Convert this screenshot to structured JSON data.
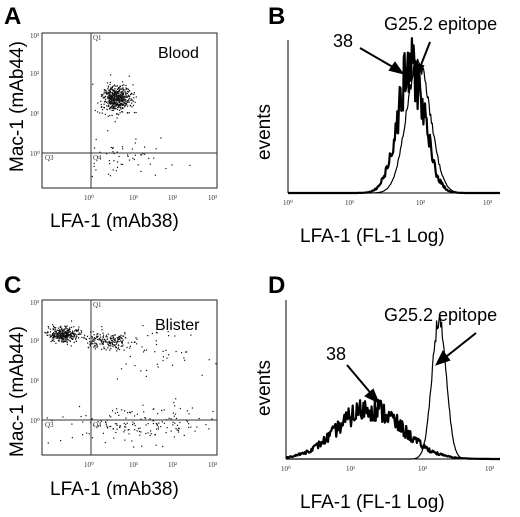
{
  "figure": {
    "panels": [
      {
        "letter": "A",
        "inset_label": "Blood",
        "xlabel": "LFA-1 (mAb38)",
        "ylabel": "Mac-1 (mAb44)",
        "xticks": [
          "10⁰",
          "10¹",
          "10²",
          "10³"
        ],
        "yticks": [
          "10⁰",
          "10¹",
          "10²",
          "10³"
        ],
        "quadrants": [
          "Q1",
          "Q2",
          "Q3",
          "Q4"
        ]
      },
      {
        "letter": "B",
        "xlabel": "LFA-1 (FL-1 Log)",
        "ylabel": "events",
        "xticks": [
          "10⁰",
          "10¹",
          "10²",
          "10³"
        ],
        "annotations": [
          "38",
          "G25.2 epitope"
        ]
      },
      {
        "letter": "C",
        "inset_label": "Blister",
        "xlabel": "LFA-1 (mAb38)",
        "ylabel": "Mac-1 (mAb44)",
        "xticks": [
          "10⁰",
          "10¹",
          "10²",
          "10³"
        ],
        "yticks": [
          "10⁰",
          "10¹",
          "10²",
          "10³"
        ],
        "quadrants": [
          "Q1",
          "Q2",
          "Q3",
          "Q4"
        ]
      },
      {
        "letter": "D",
        "xlabel": "LFA-1 (FL-1 Log)",
        "ylabel": "events",
        "xticks": [
          "10⁰",
          "10¹",
          "10²",
          "10³"
        ],
        "annotations": [
          "38",
          "G25.2 epitope"
        ]
      }
    ]
  },
  "chart_data": [
    {
      "type": "scatter",
      "panel": "A",
      "xscale": "log",
      "yscale": "log",
      "xlim": [
        0.1,
        1000
      ],
      "ylim": [
        0.01,
        1000
      ],
      "gate": {
        "x": 1,
        "y": 1
      },
      "populations": [
        {
          "center": [
            5,
            8
          ],
          "spread_log": [
            0.17,
            0.22
          ],
          "count": 520
        },
        {
          "center": [
            8,
            0.1
          ],
          "spread_log": [
            0.6,
            0.3
          ],
          "count": 55
        }
      ]
    },
    {
      "type": "line",
      "panel": "B",
      "xscale": "log",
      "xlim": [
        1,
        1000
      ],
      "ylim": [
        0,
        1
      ],
      "series": [
        {
          "name": "38",
          "peak_x": 55,
          "peak_y": 0.85,
          "width_log": 0.19,
          "thick": true
        },
        {
          "name": "G25.2 epitope",
          "peak_x": 70,
          "peak_y": 0.88,
          "width_log": 0.17,
          "thick": false
        }
      ]
    },
    {
      "type": "scatter",
      "panel": "C",
      "xscale": "log",
      "yscale": "log",
      "xlim": [
        0.1,
        1000
      ],
      "ylim": [
        0.01,
        1000
      ],
      "gate": {
        "x": 1,
        "y": 1
      },
      "populations": [
        {
          "center": [
            0.3,
            80
          ],
          "spread_log": [
            0.18,
            0.12
          ],
          "count": 330
        },
        {
          "center": [
            3,
            50
          ],
          "spread_log": [
            0.3,
            0.14
          ],
          "count": 200
        },
        {
          "center": [
            40,
            20
          ],
          "spread_log": [
            0.6,
            0.35
          ],
          "count": 50
        },
        {
          "center": [
            20,
            0.1
          ],
          "spread_log": [
            0.9,
            0.3
          ],
          "count": 170
        }
      ]
    },
    {
      "type": "line",
      "panel": "D",
      "xscale": "log",
      "xlim": [
        1,
        1000
      ],
      "ylim": [
        0,
        1
      ],
      "series": [
        {
          "name": "38",
          "peak_x": 15,
          "peak_y": 0.3,
          "width_log": 0.45,
          "thick": true
        },
        {
          "name": "G25.2 epitope",
          "peak_x": 140,
          "peak_y": 0.82,
          "width_log": 0.1,
          "thick": false
        }
      ]
    }
  ]
}
